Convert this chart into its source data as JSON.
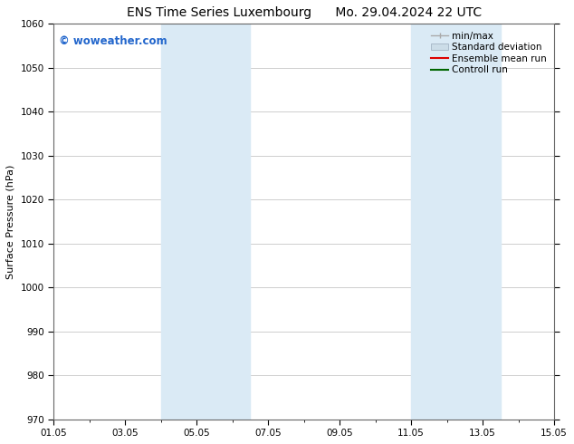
{
  "title_left": "ENS Time Series Luxembourg",
  "title_right": "Mo. 29.04.2024 22 UTC",
  "ylabel": "Surface Pressure (hPa)",
  "ylim": [
    970,
    1060
  ],
  "yticks": [
    970,
    980,
    990,
    1000,
    1010,
    1020,
    1030,
    1040,
    1050,
    1060
  ],
  "xlim": [
    0,
    14
  ],
  "xtick_labels": [
    "01.05",
    "03.05",
    "05.05",
    "07.05",
    "09.05",
    "11.05",
    "13.05",
    "15.05"
  ],
  "xtick_positions": [
    0,
    2,
    4,
    6,
    8,
    10,
    12,
    14
  ],
  "shading_bands": [
    {
      "x_start": 3.0,
      "x_end": 5.5
    },
    {
      "x_start": 10.0,
      "x_end": 12.5
    }
  ],
  "shading_color": "#daeaf5",
  "grid_color": "#bbbbbb",
  "watermark": "© woweather.com",
  "watermark_color": "#2266cc",
  "legend_items": [
    {
      "label": "min/max",
      "color": "#aaaaaa",
      "style": "errorbar"
    },
    {
      "label": "Standard deviation",
      "color": "#ccdde8",
      "style": "bar"
    },
    {
      "label": "Ensemble mean run",
      "color": "#dd0000",
      "style": "line"
    },
    {
      "label": "Controll run",
      "color": "#006600",
      "style": "line"
    }
  ],
  "bg_color": "#ffffff",
  "title_fontsize": 10,
  "tick_fontsize": 7.5,
  "ylabel_fontsize": 8,
  "legend_fontsize": 7.5,
  "watermark_fontsize": 8.5
}
